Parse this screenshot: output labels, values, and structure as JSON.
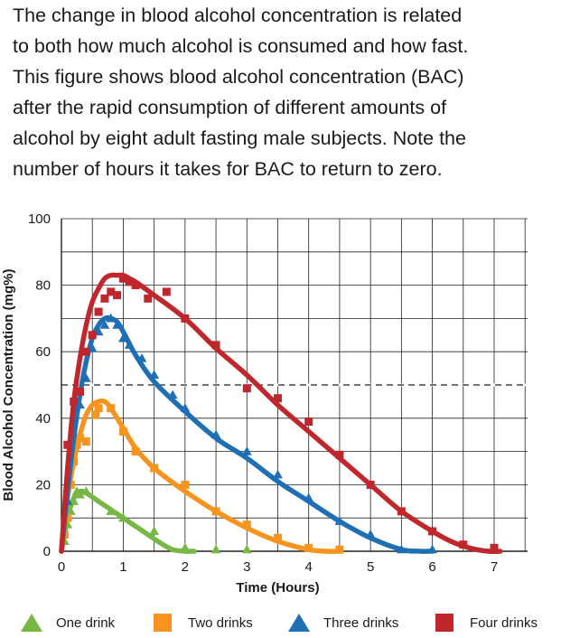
{
  "description": {
    "lines": [
      "The change in blood alcohol concentration is related",
      "to both how much alcohol is consumed and how fast.",
      "This figure shows blood alcohol concentration (BAC)",
      "after the rapid consumption of different amounts of",
      "alcohol by eight adult fasting male subjects. Note the",
      "number of hours it takes for BAC to return to zero."
    ]
  },
  "chart_data": {
    "type": "line",
    "xlabel": "Time (Hours)",
    "ylabel": "Blood Alcohol Concentration (mg%)",
    "xlim": [
      0,
      7.2
    ],
    "ylim": [
      0,
      100
    ],
    "xticks": [
      "0",
      "1",
      "2",
      "3",
      "4",
      "5",
      "6",
      "7"
    ],
    "yticks": [
      "0",
      "20",
      "40",
      "60",
      "80",
      "100"
    ],
    "grid": true,
    "reference_line": {
      "y": 50,
      "style": "dashed"
    },
    "legend_position": "bottom",
    "series": [
      {
        "name": "One drink",
        "color": "#76b843",
        "marker": "triangle",
        "curve_x": [
          0,
          0.1,
          0.2,
          0.3,
          0.4,
          0.6,
          0.8,
          1.0,
          1.2,
          1.4,
          1.6,
          1.8,
          2.0,
          2.15
        ],
        "curve_y": [
          0,
          10,
          16,
          18,
          17.5,
          15,
          12.5,
          10,
          7.5,
          5,
          2.5,
          0.5,
          0,
          0
        ],
        "points_x": [
          0.05,
          0.1,
          0.15,
          0.2,
          0.25,
          0.3,
          0.4,
          0.8,
          1.0,
          1.5,
          2.0,
          2.5,
          3.0
        ],
        "points_y": [
          3,
          8,
          12,
          15,
          18,
          17,
          18,
          12,
          10,
          6,
          1,
          0.5,
          0.5
        ]
      },
      {
        "name": "Two drinks",
        "color": "#f7941d",
        "marker": "square",
        "curve_x": [
          0,
          0.1,
          0.2,
          0.3,
          0.4,
          0.5,
          0.6,
          0.7,
          0.8,
          1.0,
          1.2,
          1.5,
          2.0,
          2.5,
          3.0,
          3.5,
          4.0,
          4.3,
          4.5
        ],
        "curve_y": [
          0,
          16,
          27,
          35,
          41,
          44,
          45,
          45,
          43,
          37,
          31,
          25,
          18,
          12,
          7,
          3,
          0.5,
          0,
          0
        ],
        "points_x": [
          0.05,
          0.1,
          0.15,
          0.2,
          0.25,
          0.3,
          0.4,
          0.55,
          0.6,
          0.8,
          1.0,
          1.2,
          1.5,
          2.0,
          2.5,
          3.0,
          3.5,
          4.0,
          4.5
        ],
        "points_y": [
          5,
          10,
          20,
          27,
          32,
          34,
          33,
          41,
          43,
          43,
          36,
          30,
          25,
          20,
          12,
          8,
          4,
          1,
          0.5
        ]
      },
      {
        "name": "Three drinks",
        "color": "#1f6fb5",
        "marker": "triangle",
        "curve_x": [
          0,
          0.1,
          0.2,
          0.3,
          0.4,
          0.5,
          0.6,
          0.7,
          0.8,
          0.9,
          1.0,
          1.2,
          1.5,
          2.0,
          2.5,
          3.0,
          3.5,
          4.0,
          4.5,
          5.0,
          5.5,
          5.8,
          6.0
        ],
        "curve_y": [
          0,
          18,
          34,
          47,
          57,
          64,
          68,
          70,
          70,
          69,
          66,
          59,
          51,
          42,
          34,
          28,
          21,
          15,
          9,
          4,
          0.5,
          0,
          0
        ],
        "points_x": [
          0.1,
          0.3,
          0.4,
          0.5,
          0.6,
          0.7,
          0.8,
          0.9,
          1.0,
          1.1,
          1.3,
          1.5,
          1.8,
          2.0,
          2.5,
          3.0,
          3.5,
          4.0,
          4.5,
          5.0,
          5.5,
          6.0
        ],
        "points_y": [
          15,
          44,
          52,
          61,
          66,
          68,
          70,
          68,
          64,
          62,
          58,
          53,
          47,
          43,
          35,
          30,
          23,
          16,
          9,
          5,
          0.5,
          0.5
        ]
      },
      {
        "name": "Four drinks",
        "color": "#c0272d",
        "marker": "square",
        "curve_x": [
          0,
          0.1,
          0.2,
          0.3,
          0.4,
          0.5,
          0.6,
          0.7,
          0.8,
          0.9,
          1.0,
          1.1,
          1.2,
          1.5,
          2.0,
          2.5,
          3.0,
          3.5,
          4.0,
          4.5,
          5.0,
          5.5,
          6.0,
          6.3,
          6.6,
          6.9,
          7.1
        ],
        "curve_y": [
          0,
          25,
          45,
          58,
          68,
          75,
          79,
          82,
          83,
          83,
          83,
          82,
          81,
          77,
          70,
          61,
          53,
          44,
          36,
          28,
          20,
          12,
          6,
          3,
          1,
          0,
          0
        ],
        "points_x": [
          0.1,
          0.2,
          0.3,
          0.4,
          0.5,
          0.6,
          0.7,
          0.8,
          0.9,
          1.0,
          1.1,
          1.2,
          1.4,
          1.7,
          2.0,
          2.5,
          3.0,
          3.5,
          4.0,
          4.5,
          5.0,
          5.5,
          6.0,
          6.5,
          7.0
        ],
        "points_y": [
          32,
          45,
          48,
          60,
          65,
          72,
          76,
          78,
          77,
          82,
          81,
          80,
          76,
          78,
          70,
          62,
          49,
          46,
          39,
          29,
          20,
          12,
          6,
          2,
          1
        ]
      }
    ]
  }
}
